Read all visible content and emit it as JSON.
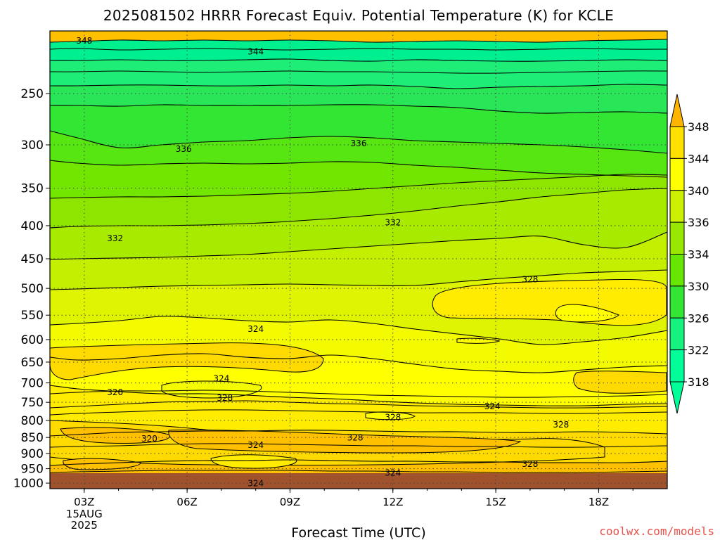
{
  "chart_data": {
    "type": "contour",
    "title": "2025081502 HRRR Forecast Equiv. Potential Temperature (K) for KCLE",
    "xlabel": "Forecast Time (UTC)",
    "ylabel": "",
    "x_ticks": [
      {
        "hour": 3,
        "label": "03Z",
        "sub": [
          "15AUG",
          "2025"
        ]
      },
      {
        "hour": 6,
        "label": "06Z",
        "sub": []
      },
      {
        "hour": 9,
        "label": "09Z",
        "sub": []
      },
      {
        "hour": 12,
        "label": "12Z",
        "sub": []
      },
      {
        "hour": 15,
        "label": "15Z",
        "sub": []
      },
      {
        "hour": 18,
        "label": "18Z",
        "sub": []
      }
    ],
    "xlim": [
      2,
      20
    ],
    "y_ticks": [
      250,
      300,
      350,
      400,
      450,
      500,
      550,
      600,
      650,
      700,
      750,
      800,
      850,
      900,
      950,
      1000
    ],
    "ylim_hPa": [
      200,
      1020
    ],
    "y_scale": "log",
    "grid": "dotted",
    "colorbar": {
      "levels": [
        318,
        322,
        326,
        330,
        334,
        336,
        340,
        344,
        348
      ],
      "colors": [
        "#00ff99",
        "#17f27e",
        "#33e633",
        "#66e600",
        "#99e600",
        "#ccf000",
        "#ffff00",
        "#ffe100",
        "#ffb400"
      ]
    },
    "band_colors": [
      "#00f090",
      "#1eee78",
      "#29e658",
      "#33e633",
      "#57e612",
      "#73e600",
      "#8ee600",
      "#a8ea00",
      "#c2f000",
      "#def400",
      "#f4fa00",
      "#ffff00",
      "#ffec00",
      "#ffda00",
      "#ffc000"
    ],
    "background_fill": "#ffc000",
    "ground_color": "#a0522d",
    "contour_levels": [
      348,
      346,
      344,
      342,
      340,
      338,
      336,
      334,
      332,
      330,
      328,
      326,
      324,
      322
    ],
    "contour_labels": [
      {
        "value": "348",
        "hour": 3.0,
        "hPa": 207
      },
      {
        "value": "344",
        "hour": 8.0,
        "hPa": 215
      },
      {
        "value": "336",
        "hour": 5.9,
        "hPa": 304
      },
      {
        "value": "336",
        "hour": 11.0,
        "hPa": 298
      },
      {
        "value": "332",
        "hour": 3.9,
        "hPa": 418
      },
      {
        "value": "332",
        "hour": 12.0,
        "hPa": 395
      },
      {
        "value": "328",
        "hour": 16.0,
        "hPa": 484
      },
      {
        "value": "324",
        "hour": 8.0,
        "hPa": 577
      },
      {
        "value": "324",
        "hour": 7.0,
        "hPa": 689
      },
      {
        "value": "320",
        "hour": 3.9,
        "hPa": 723
      },
      {
        "value": "328",
        "hour": 7.1,
        "hPa": 738
      },
      {
        "value": "324",
        "hour": 14.9,
        "hPa": 760
      },
      {
        "value": "328",
        "hour": 12.0,
        "hPa": 790
      },
      {
        "value": "328",
        "hour": 16.9,
        "hPa": 811
      },
      {
        "value": "328",
        "hour": 10.9,
        "hPa": 850
      },
      {
        "value": "320",
        "hour": 4.9,
        "hPa": 853
      },
      {
        "value": "324",
        "hour": 8.0,
        "hPa": 872
      },
      {
        "value": "324",
        "hour": 12.0,
        "hPa": 963
      },
      {
        "value": "328",
        "hour": 16.0,
        "hPa": 933
      },
      {
        "value": "324",
        "hour": 8.0,
        "hPa": 1000
      }
    ]
  },
  "credit": "coolwx.com/models"
}
